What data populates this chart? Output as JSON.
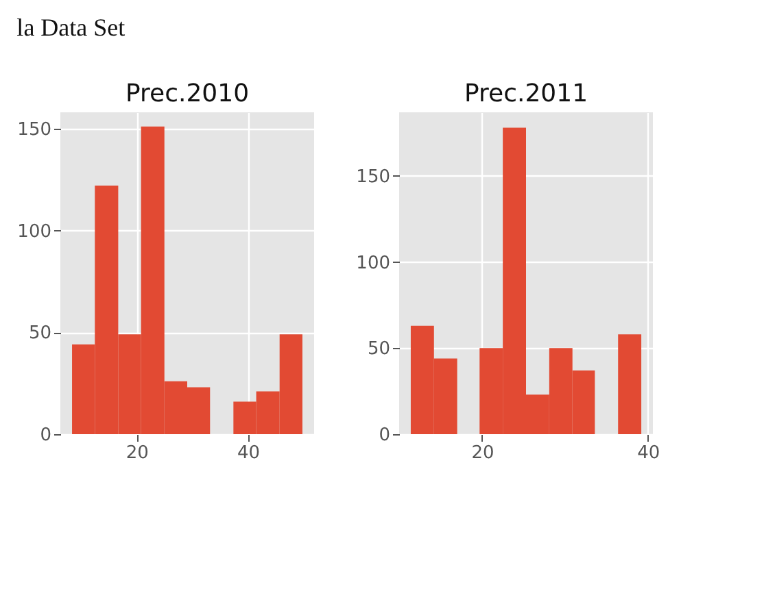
{
  "chart_data": [
    {
      "type": "histogram",
      "title": "Prec.2010",
      "annotations": [
        "la Data Set"
      ],
      "color": "#e24a33",
      "bins": [
        8.4,
        12.5,
        16.7,
        20.8,
        25.0,
        29.1,
        33.2,
        37.4,
        41.5,
        45.7,
        49.8
      ],
      "values": [
        44,
        122,
        49,
        151,
        26,
        23,
        0,
        16,
        21,
        49
      ],
      "xlim": [
        6.3,
        51.9
      ],
      "xticks": [
        20,
        40
      ],
      "ylim": [
        0,
        158
      ],
      "yticks": [
        0,
        50,
        100,
        150
      ],
      "grid": true
    },
    {
      "type": "histogram",
      "title": "Prec.2011",
      "color": "#e24a33",
      "bins": [
        11.4,
        14.2,
        17.0,
        19.7,
        22.5,
        25.3,
        28.1,
        30.9,
        33.6,
        36.4,
        39.2
      ],
      "values": [
        63,
        44,
        0,
        50,
        178,
        23,
        50,
        37,
        0,
        58
      ],
      "xlim": [
        10.0,
        40.6
      ],
      "xticks": [
        20,
        40
      ],
      "ylim": [
        0,
        187
      ],
      "yticks": [
        0,
        50,
        100,
        150
      ],
      "grid": true
    }
  ]
}
